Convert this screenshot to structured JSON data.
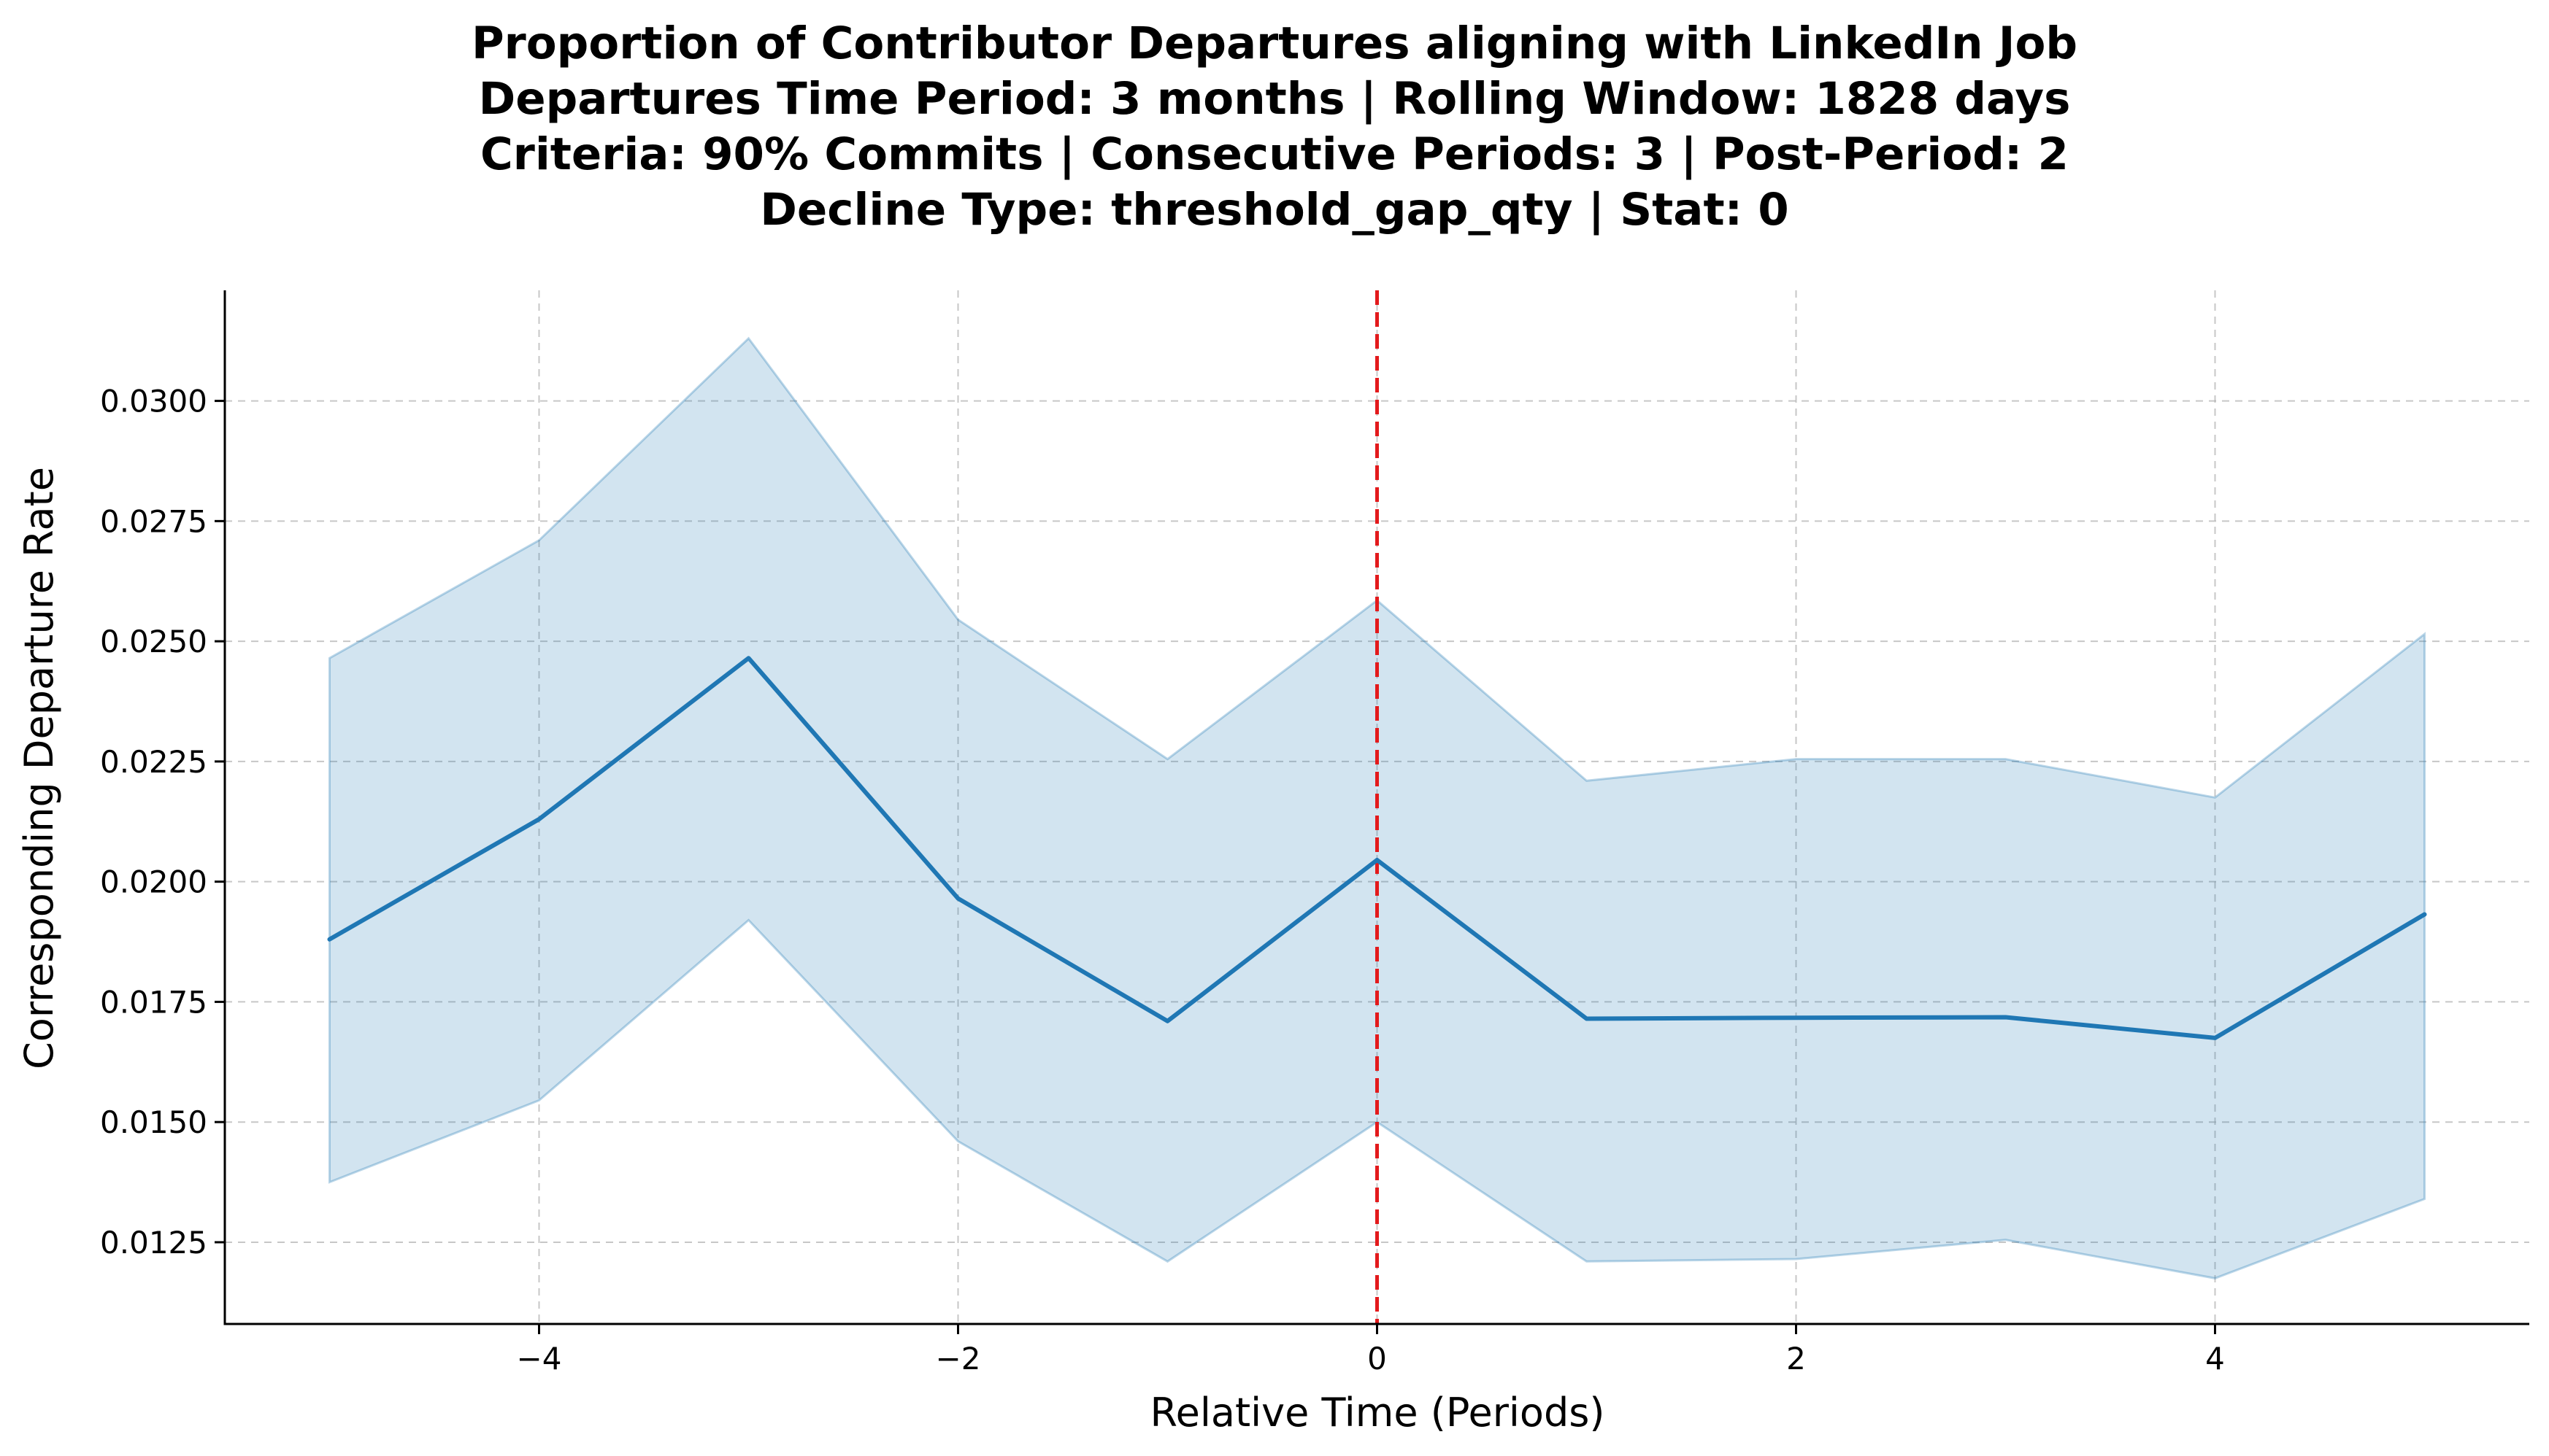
{
  "chart_data": {
    "type": "line",
    "title_lines": [
      "Proportion of Contributor Departures aligning with LinkedIn Job",
      "Departures Time Period: 3 months | Rolling Window: 1828 days",
      "Criteria: 90% Commits | Consecutive Periods: 3 | Post-Period: 2",
      "Decline Type: threshold_gap_qty | Stat: 0"
    ],
    "xlabel": "Relative Time (Periods)",
    "ylabel": "Corresponding Departure Rate",
    "x": [
      -5,
      -4,
      -3,
      -2,
      -1,
      0,
      1,
      2,
      3,
      4,
      5
    ],
    "series": [
      {
        "values": [
          0.0188,
          0.0213,
          0.02465,
          0.01965,
          0.0171,
          0.02045,
          0.01715,
          0.01717,
          0.01718,
          0.01675,
          0.01932
        ],
        "lower": [
          0.01375,
          0.01545,
          0.0192,
          0.0146,
          0.0121,
          0.015,
          0.0121,
          0.01215,
          0.01255,
          0.01175,
          0.0134
        ],
        "upper": [
          0.02465,
          0.0271,
          0.0313,
          0.02545,
          0.02255,
          0.02585,
          0.0221,
          0.02255,
          0.02255,
          0.02175,
          0.02515
        ],
        "color": "#1f77b4",
        "band_color": "#1f77b4",
        "band_opacity": 0.2
      }
    ],
    "reference_line": {
      "x": 0,
      "color": "#e31a1c",
      "style": "dashed"
    },
    "x_ticks": [
      -4,
      -2,
      0,
      2,
      4
    ],
    "x_tick_labels": [
      "−4",
      "−2",
      "0",
      "2",
      "4"
    ],
    "y_ticks": [
      0.0125,
      0.015,
      0.0175,
      0.02,
      0.0225,
      0.025,
      0.0275,
      0.03
    ],
    "y_tick_labels": [
      "0.0125",
      "0.0150",
      "0.0175",
      "0.0200",
      "0.0225",
      "0.0250",
      "0.0275",
      "0.0300"
    ],
    "xlim": [
      -5.5,
      5.5
    ],
    "ylim": [
      0.0108,
      0.0323
    ],
    "grid": true,
    "legend": "none"
  }
}
